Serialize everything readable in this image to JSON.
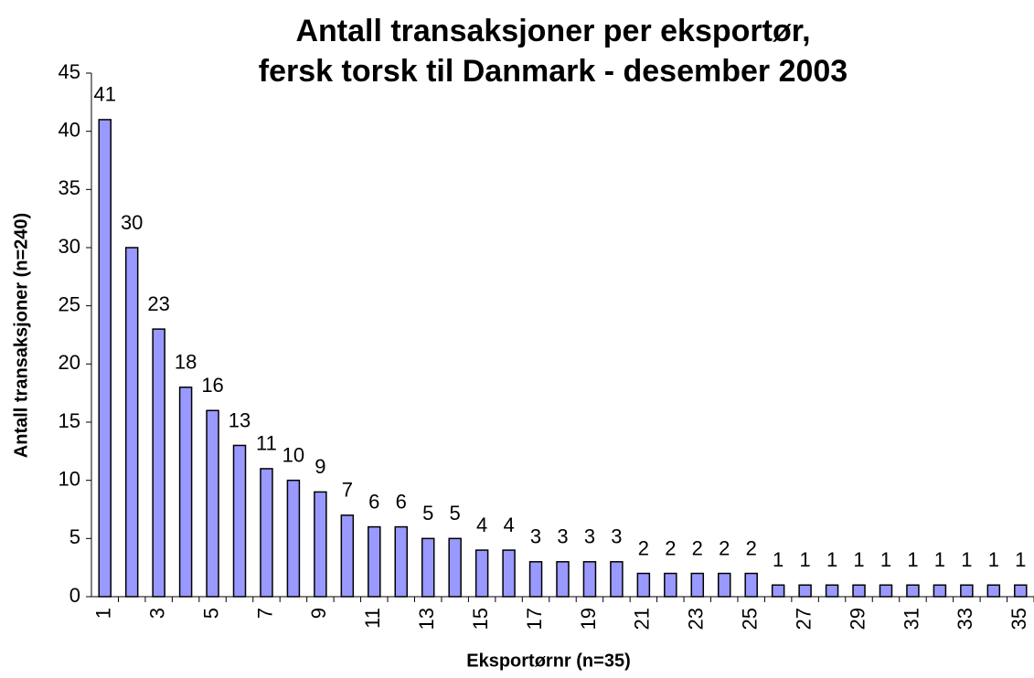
{
  "chart_data": {
    "type": "bar",
    "title": [
      "Antall transaksjoner per eksportør,",
      "fersk torsk til Danmark - desember 2003"
    ],
    "x_label": "Eksportørnr (n=35)",
    "y_label": "Antall transaksjoner (n=240)",
    "categories": [
      "1",
      null,
      "3",
      null,
      "5",
      null,
      "7",
      null,
      "9",
      null,
      "11",
      null,
      "13",
      null,
      "15",
      null,
      "17",
      null,
      "19",
      null,
      "21",
      null,
      "23",
      null,
      "25",
      null,
      "27",
      null,
      "29",
      null,
      "31",
      null,
      "33",
      null,
      "35"
    ],
    "values": [
      41,
      30,
      23,
      18,
      16,
      13,
      11,
      10,
      9,
      7,
      6,
      6,
      5,
      5,
      4,
      4,
      3,
      3,
      3,
      3,
      2,
      2,
      2,
      2,
      2,
      1,
      1,
      1,
      1,
      1,
      1,
      1,
      1,
      1,
      1
    ],
    "color": "#9999ff",
    "ylim": [
      0,
      45
    ],
    "yticks": [
      0,
      5,
      10,
      15,
      20,
      25,
      30,
      35,
      40,
      45
    ],
    "grid": false
  }
}
